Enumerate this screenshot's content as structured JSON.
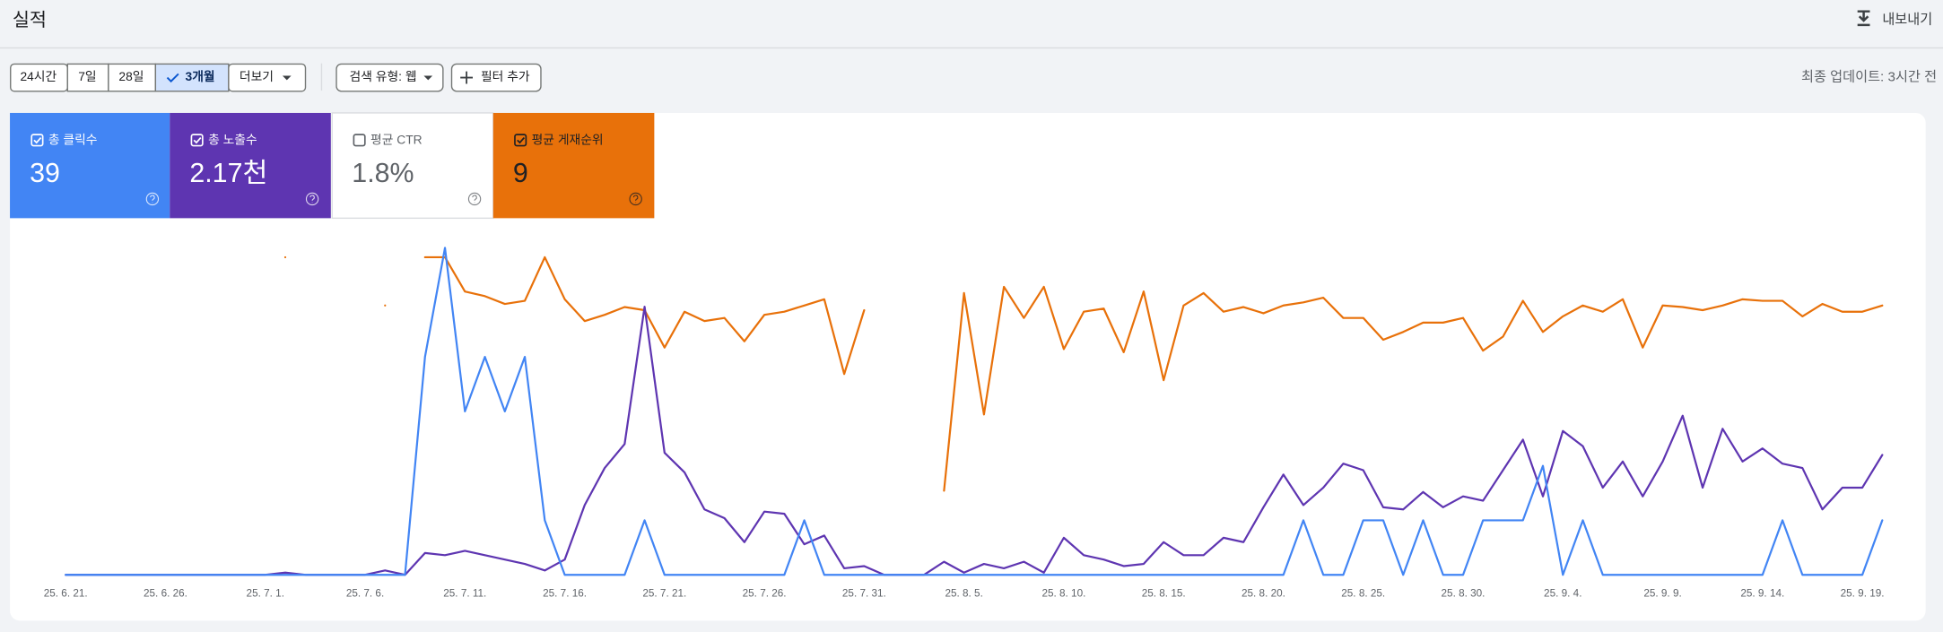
{
  "header": {
    "title": "실적",
    "export": "내보내기",
    "last_update": "최종 업데이트: 3시간 전"
  },
  "range_buttons": [
    "24시간",
    "7일",
    "28일",
    "3개월",
    "더보기"
  ],
  "range_selected": 3,
  "search_type": "검색 유형: 웹",
  "add_filter": "필터 추가",
  "ctr": {
    "name": "평균 CTR",
    "total": "1.8%",
    "checked": false,
    "color": "#ffffff",
    "card_text_color": "#5f6368"
  },
  "chart_data": {
    "type": "line",
    "categories": [
      "25. 6. 21.",
      null,
      null,
      null,
      null,
      "25. 6. 26.",
      null,
      null,
      null,
      null,
      "25. 7. 1.",
      null,
      null,
      null,
      null,
      "25. 7. 6.",
      null,
      null,
      null,
      null,
      "25. 7. 11.",
      null,
      null,
      null,
      null,
      "25. 7. 16.",
      null,
      null,
      null,
      null,
      "25. 7. 21.",
      null,
      null,
      null,
      null,
      "25. 7. 26.",
      null,
      null,
      null,
      null,
      "25. 7. 31.",
      null,
      null,
      null,
      null,
      "25. 8. 5.",
      null,
      null,
      null,
      null,
      "25. 8. 10.",
      null,
      null,
      null,
      null,
      "25. 8. 15.",
      null,
      null,
      null,
      null,
      "25. 8. 20.",
      null,
      null,
      null,
      null,
      "25. 8. 25.",
      null,
      null,
      null,
      null,
      "25. 8. 30.",
      null,
      null,
      null,
      null,
      "25. 9. 4.",
      null,
      null,
      null,
      null,
      "25. 9. 9.",
      null,
      null,
      null,
      null,
      "25. 9. 14.",
      null,
      null,
      null,
      null,
      "25. 9. 19.",
      null
    ],
    "series": [
      {
        "name": "총 클릭수",
        "total": "39",
        "checked": true,
        "color": "#4285f4",
        "card_text_color": "#ffffff",
        "ylim": [
          0,
          6
        ],
        "values": [
          0,
          0,
          0,
          0,
          0,
          0,
          0,
          0,
          0,
          0,
          0,
          0,
          0,
          0,
          0,
          0,
          0,
          0,
          4,
          6,
          3,
          4,
          3,
          4,
          1,
          0,
          0,
          0,
          0,
          1,
          0,
          0,
          0,
          0,
          0,
          0,
          0,
          1,
          0,
          0,
          0,
          0,
          0,
          0,
          0,
          0,
          0,
          0,
          0,
          0,
          0,
          0,
          0,
          0,
          0,
          0,
          0,
          0,
          0,
          0,
          0,
          0,
          1,
          0,
          0,
          1,
          1,
          0,
          1,
          0,
          0,
          1,
          1,
          1,
          2,
          0,
          1,
          0,
          0,
          0,
          0,
          0,
          0,
          0,
          0,
          0,
          1,
          0,
          0,
          0,
          0,
          1
        ]
      },
      {
        "name": "총 노출수",
        "total": "2.17천",
        "checked": true,
        "color": "#5e35b1",
        "card_text_color": "#ffffff",
        "ylim": [
          0,
          150
        ],
        "values": [
          0,
          0,
          0,
          0,
          0,
          0,
          0,
          0,
          0,
          0,
          0,
          1,
          0,
          0,
          0,
          0,
          2,
          0,
          10,
          9,
          11,
          9,
          7,
          5,
          2,
          7,
          32,
          49,
          60,
          123,
          56,
          47,
          30,
          26,
          15,
          29,
          28,
          14,
          18,
          3,
          4,
          0,
          0,
          0,
          6,
          1,
          5,
          3,
          6,
          1,
          17,
          9,
          7,
          4,
          5,
          15,
          9,
          9,
          17,
          15,
          31,
          46,
          32,
          40,
          51,
          48,
          31,
          30,
          38,
          31,
          36,
          34,
          48,
          62,
          36,
          66,
          59,
          40,
          52,
          36,
          52,
          73,
          40,
          67,
          52,
          58,
          51,
          49,
          30,
          40,
          40,
          55
        ]
      },
      {
        "name": "평균 게재순위",
        "total": "9",
        "checked": true,
        "color": "#e8710a",
        "card_text_color": "#202124",
        "ylim": [
          26,
          5
        ],
        "values": [
          null,
          null,
          null,
          null,
          null,
          null,
          null,
          null,
          null,
          null,
          null,
          5.6,
          null,
          null,
          null,
          null,
          8.7,
          null,
          5.6,
          5.6,
          7.8,
          8.1,
          8.6,
          8.4,
          5.6,
          8.3,
          9.7,
          9.3,
          8.8,
          9.0,
          11.4,
          9.1,
          9.7,
          9.5,
          11.0,
          9.3,
          9.1,
          8.7,
          8.3,
          13.1,
          9.0,
          null,
          null,
          null,
          20.6,
          7.9,
          15.7,
          7.5,
          9.5,
          7.5,
          11.5,
          9.1,
          8.9,
          11.7,
          7.8,
          13.5,
          8.7,
          7.9,
          9.1,
          8.8,
          9.2,
          8.7,
          8.5,
          8.2,
          9.5,
          9.5,
          10.9,
          10.4,
          9.8,
          9.8,
          9.5,
          11.6,
          10.7,
          8.4,
          10.4,
          9.4,
          8.7,
          9.1,
          8.3,
          11.4,
          8.7,
          8.8,
          9.0,
          8.7,
          8.3,
          8.4,
          8.4,
          9.4,
          8.6,
          9.1,
          9.1,
          8.7
        ]
      }
    ]
  }
}
